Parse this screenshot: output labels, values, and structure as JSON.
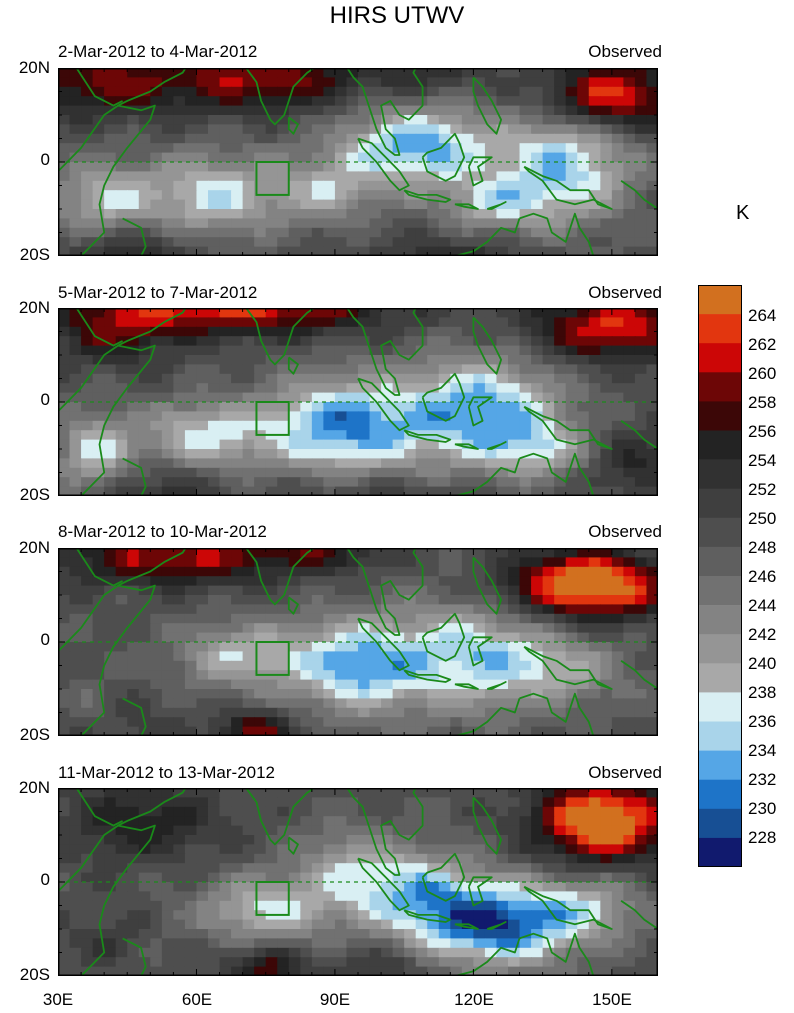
{
  "title": "HIRS UTWV",
  "unit": "K",
  "chart_data": {
    "type": "heatmap",
    "title": "HIRS UTWV",
    "variable_unit": "K",
    "x_ticks": [
      "30E",
      "60E",
      "90E",
      "120E",
      "150E"
    ],
    "x_range_deg_east": [
      30,
      160
    ],
    "y_ticks": [
      "20N",
      "0",
      "20S"
    ],
    "y_range_deg": [
      -20,
      20
    ],
    "colorbar": {
      "levels": [
        228,
        230,
        232,
        234,
        236,
        238,
        240,
        242,
        244,
        246,
        248,
        250,
        252,
        254,
        256,
        258,
        260,
        262,
        264
      ],
      "labels": [
        "264",
        "262",
        "260",
        "258",
        "256",
        "254",
        "252",
        "250",
        "248",
        "246",
        "244",
        "242",
        "240",
        "238",
        "236",
        "234",
        "232",
        "230",
        "228"
      ],
      "colors": [
        "#111a6e",
        "#174f94",
        "#1e74c8",
        "#55a6e6",
        "#a9d4ea",
        "#d9eff3",
        "#a8a8a8",
        "#959595",
        "#838383",
        "#717171",
        "#5f5f5f",
        "#4e4e4e",
        "#3f3f3f",
        "#313131",
        "#232323",
        "#3c0707",
        "#6d0606",
        "#cc0606",
        "#e2360f",
        "#d2701f"
      ]
    },
    "panels": [
      {
        "period": "2-Mar-2012 to 4-Mar-2012",
        "label": "Observed"
      },
      {
        "period": "5-Mar-2012 to 7-Mar-2012",
        "label": "Observed"
      },
      {
        "period": "8-Mar-2012 to 10-Mar-2012",
        "label": "Observed"
      },
      {
        "period": "11-Mar-2012 to 13-Mar-2012",
        "label": "Observed"
      }
    ]
  }
}
